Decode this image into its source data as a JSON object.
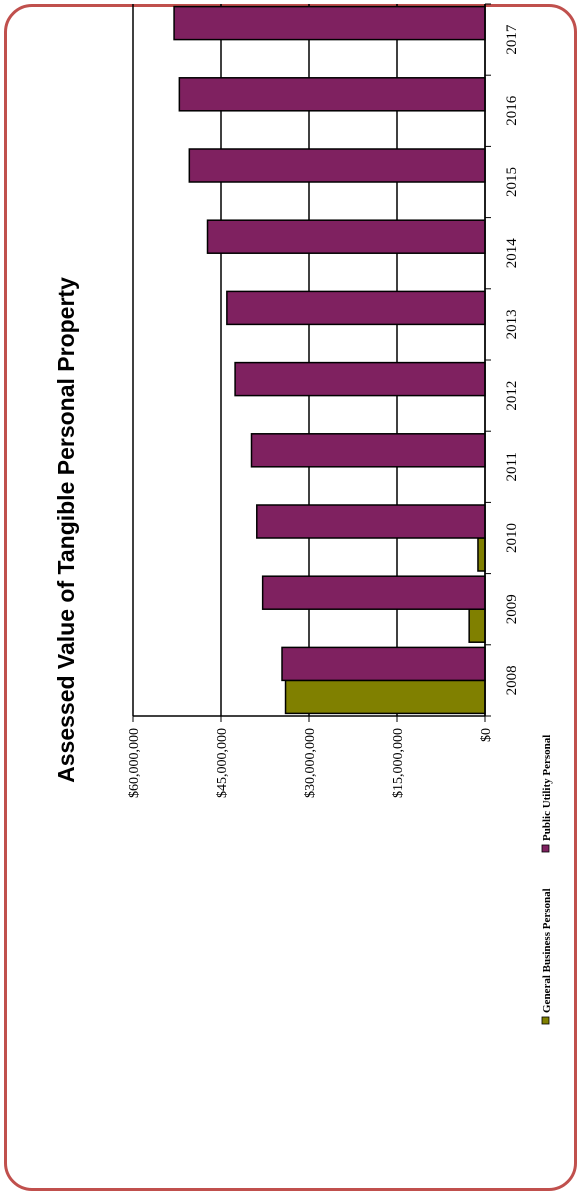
{
  "chart_data": {
    "type": "bar",
    "orientation": "horizontal-rotated",
    "title": "Assessed Value of Tangible Personal Property",
    "categories": [
      "2008",
      "2009",
      "2010",
      "2011",
      "2012",
      "2013",
      "2014",
      "2015",
      "2016",
      "2017"
    ],
    "series": [
      {
        "name": "General Business Personal",
        "color": "#808000",
        "values": [
          34000000,
          2700000,
          1200000,
          0,
          0,
          0,
          0,
          0,
          0,
          0
        ]
      },
      {
        "name": "Public Utility Personal",
        "color": "#7f2160",
        "values": [
          34600000,
          37900000,
          38900000,
          39800000,
          42600000,
          44000000,
          47300000,
          50400000,
          52100000,
          53000000
        ]
      }
    ],
    "value_ticks": [
      "$0",
      "$15,000,000",
      "$30,000,000",
      "$45,000,000",
      "$60,000,000"
    ],
    "ylim": [
      0,
      60000000
    ],
    "grid": true,
    "legend": "bottom"
  }
}
